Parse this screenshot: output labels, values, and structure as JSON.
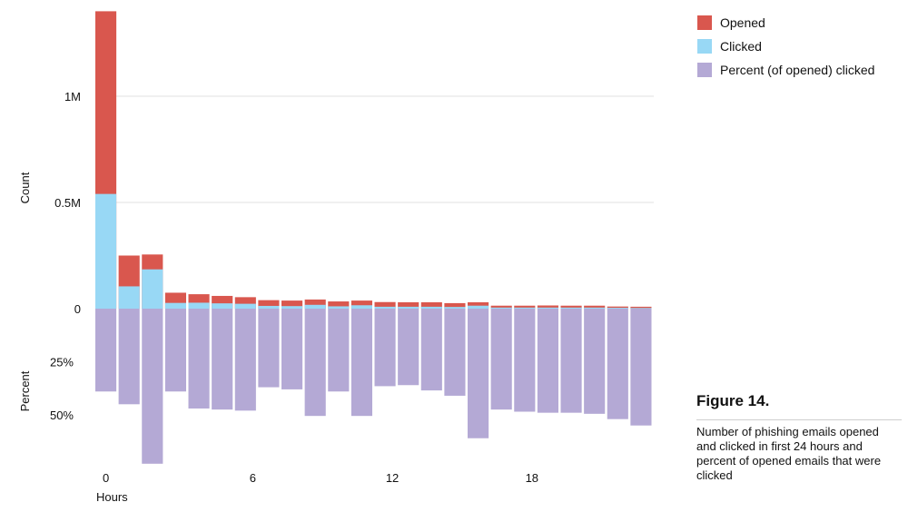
{
  "chart_data": {
    "type": "bar",
    "layout": "stacked bars above zero (count) and downward bars below zero (percent)",
    "categories": [
      0,
      1,
      2,
      3,
      4,
      5,
      6,
      7,
      8,
      9,
      10,
      11,
      12,
      13,
      14,
      15,
      16,
      17,
      18,
      19,
      20,
      21,
      22,
      23
    ],
    "series": [
      {
        "name": "Opened",
        "axis": "count",
        "color": "#d9574e",
        "values": [
          1400000,
          250000,
          255000,
          75000,
          68000,
          60000,
          54000,
          40000,
          38000,
          43000,
          34000,
          38000,
          31000,
          30000,
          30000,
          26000,
          30000,
          14000,
          14000,
          15000,
          14000,
          14000,
          10000,
          9000
        ]
      },
      {
        "name": "Clicked",
        "axis": "count",
        "color": "#98d8f5",
        "values": [
          540000,
          105000,
          185000,
          27000,
          28000,
          25000,
          23000,
          13000,
          12000,
          18000,
          11000,
          16000,
          9000,
          9000,
          9000,
          8000,
          14000,
          5000,
          5000,
          5000,
          5000,
          5000,
          4000,
          3000
        ]
      },
      {
        "name": "Percent (of opened) clicked",
        "axis": "percent",
        "color": "#b4a9d5",
        "values": [
          39,
          45,
          73,
          39,
          47,
          47.5,
          48,
          37,
          38,
          50.5,
          39,
          50.5,
          36.5,
          36,
          38.5,
          41,
          61,
          47.5,
          48.5,
          49,
          49,
          49.5,
          52,
          55
        ]
      }
    ],
    "x_ticks": [
      "0",
      "6",
      "12",
      "18"
    ],
    "xlabel": "Hours",
    "count_axis": {
      "label": "Count",
      "ticks": [
        "0",
        "0.5M",
        "1M"
      ],
      "tick_values": [
        0,
        500000,
        1000000
      ],
      "max": 1400000
    },
    "percent_axis": {
      "label": "Percent",
      "ticks": [
        "25%",
        "50%"
      ],
      "tick_values": [
        25,
        50
      ],
      "max": 73
    },
    "grid": true,
    "legend_position": "top-right"
  },
  "legend": [
    {
      "label": "Opened",
      "color": "#d9574e"
    },
    {
      "label": "Clicked",
      "color": "#98d8f5"
    },
    {
      "label": "Percent (of opened) clicked",
      "color": "#b4a9d5"
    }
  ],
  "caption": {
    "title": "Figure 14.",
    "text": "Number of phishing emails opened and clicked in first 24 hours and percent of opened emails that were clicked"
  }
}
